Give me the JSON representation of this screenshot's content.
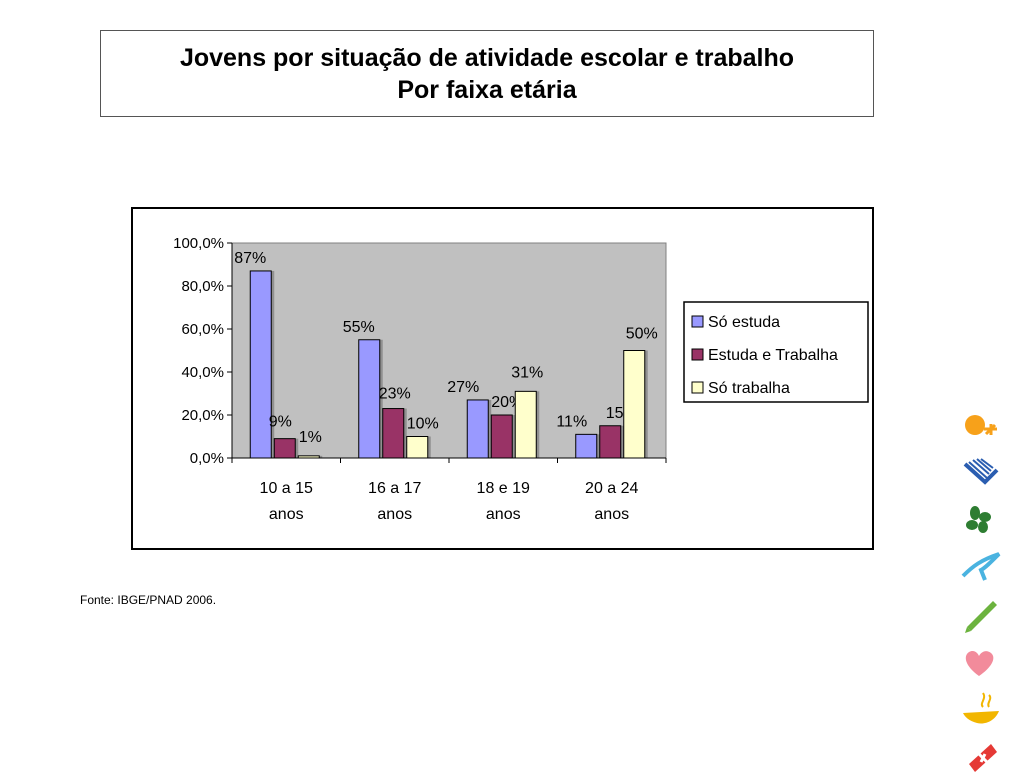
{
  "header": {
    "title_line1": "Jovens por situação de atividade escolar e trabalho",
    "title_line2": "Por faixa etária"
  },
  "source": "Fonte: IBGE/PNAD 2006.",
  "chart_data": {
    "type": "bar",
    "title": "",
    "xlabel": "",
    "ylabel": "",
    "categories": [
      [
        "10 a 15",
        "anos"
      ],
      [
        "16 a 17",
        "anos"
      ],
      [
        "18 e 19",
        "anos"
      ],
      [
        "20 a 24",
        "anos"
      ]
    ],
    "ylim": [
      0,
      100
    ],
    "yticks": [
      0,
      20,
      40,
      60,
      80,
      100
    ],
    "ytick_labels": [
      "0,0%",
      "20,0%",
      "40,0%",
      "60,0%",
      "80,0%",
      "100,0%"
    ],
    "grid": false,
    "plot_background": "#c0c0c0",
    "legend_position": "right",
    "series": [
      {
        "name": "Só estuda",
        "color": "#9999ff",
        "values": [
          87,
          55,
          27,
          11
        ],
        "labels": [
          "87%",
          "55%",
          "27%",
          "11%"
        ]
      },
      {
        "name": "Estuda e Trabalha",
        "color": "#993366",
        "values": [
          9,
          23,
          20,
          15
        ],
        "labels": [
          "9%",
          "23%",
          "20%",
          "15%"
        ]
      },
      {
        "name": "Só trabalha",
        "color": "#ffffcc",
        "values": [
          1,
          10,
          31,
          50
        ],
        "labels": [
          "1%",
          "10%",
          "31%",
          "50%"
        ]
      }
    ]
  },
  "icons": [
    "orange-figure-icon",
    "blue-book-icon",
    "green-clover-icon",
    "cyan-bird-icon",
    "green-pencil-icon",
    "pink-heart-icon",
    "yellow-bowl-icon",
    "red-cross-icon"
  ]
}
